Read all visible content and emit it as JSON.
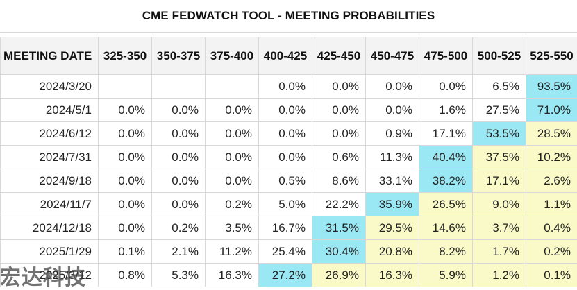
{
  "title": "CME FEDWATCH TOOL - MEETING PROBABILITIES",
  "watermark": "宏达科技",
  "colors": {
    "highest": "#9ae8f4",
    "above_current": "#fafac8",
    "header_bg": "#f3f3f3"
  },
  "table": {
    "headers": [
      "MEETING DATE",
      "325-350",
      "350-375",
      "375-400",
      "400-425",
      "425-450",
      "450-475",
      "475-500",
      "500-525",
      "525-550"
    ],
    "rows": [
      {
        "date": "2024/3/20",
        "cells": [
          {
            "v": "",
            "hl": "empty"
          },
          {
            "v": "",
            "hl": "empty"
          },
          {
            "v": "",
            "hl": "empty"
          },
          {
            "v": "0.0%",
            "hl": ""
          },
          {
            "v": "0.0%",
            "hl": ""
          },
          {
            "v": "0.0%",
            "hl": ""
          },
          {
            "v": "0.0%",
            "hl": ""
          },
          {
            "v": "6.5%",
            "hl": ""
          },
          {
            "v": "93.5%",
            "hl": "blue"
          }
        ]
      },
      {
        "date": "2024/5/1",
        "cells": [
          {
            "v": "0.0%",
            "hl": ""
          },
          {
            "v": "0.0%",
            "hl": ""
          },
          {
            "v": "0.0%",
            "hl": ""
          },
          {
            "v": "0.0%",
            "hl": ""
          },
          {
            "v": "0.0%",
            "hl": ""
          },
          {
            "v": "0.0%",
            "hl": ""
          },
          {
            "v": "1.6%",
            "hl": ""
          },
          {
            "v": "27.5%",
            "hl": ""
          },
          {
            "v": "71.0%",
            "hl": "blue"
          }
        ]
      },
      {
        "date": "2024/6/12",
        "cells": [
          {
            "v": "0.0%",
            "hl": ""
          },
          {
            "v": "0.0%",
            "hl": ""
          },
          {
            "v": "0.0%",
            "hl": ""
          },
          {
            "v": "0.0%",
            "hl": ""
          },
          {
            "v": "0.0%",
            "hl": ""
          },
          {
            "v": "0.9%",
            "hl": ""
          },
          {
            "v": "17.1%",
            "hl": ""
          },
          {
            "v": "53.5%",
            "hl": "blue"
          },
          {
            "v": "28.5%",
            "hl": "yellow"
          }
        ]
      },
      {
        "date": "2024/7/31",
        "cells": [
          {
            "v": "0.0%",
            "hl": ""
          },
          {
            "v": "0.0%",
            "hl": ""
          },
          {
            "v": "0.0%",
            "hl": ""
          },
          {
            "v": "0.0%",
            "hl": ""
          },
          {
            "v": "0.6%",
            "hl": ""
          },
          {
            "v": "11.3%",
            "hl": ""
          },
          {
            "v": "40.4%",
            "hl": "blue"
          },
          {
            "v": "37.5%",
            "hl": "yellow"
          },
          {
            "v": "10.2%",
            "hl": "yellow"
          }
        ]
      },
      {
        "date": "2024/9/18",
        "cells": [
          {
            "v": "0.0%",
            "hl": ""
          },
          {
            "v": "0.0%",
            "hl": ""
          },
          {
            "v": "0.0%",
            "hl": ""
          },
          {
            "v": "0.5%",
            "hl": ""
          },
          {
            "v": "8.6%",
            "hl": ""
          },
          {
            "v": "33.1%",
            "hl": ""
          },
          {
            "v": "38.2%",
            "hl": "blue"
          },
          {
            "v": "17.1%",
            "hl": "yellow"
          },
          {
            "v": "2.6%",
            "hl": "yellow"
          }
        ]
      },
      {
        "date": "2024/11/7",
        "cells": [
          {
            "v": "0.0%",
            "hl": ""
          },
          {
            "v": "0.0%",
            "hl": ""
          },
          {
            "v": "0.2%",
            "hl": ""
          },
          {
            "v": "5.0%",
            "hl": ""
          },
          {
            "v": "22.2%",
            "hl": ""
          },
          {
            "v": "35.9%",
            "hl": "blue"
          },
          {
            "v": "26.5%",
            "hl": "yellow"
          },
          {
            "v": "9.0%",
            "hl": "yellow"
          },
          {
            "v": "1.1%",
            "hl": "yellow"
          }
        ]
      },
      {
        "date": "2024/12/18",
        "cells": [
          {
            "v": "0.0%",
            "hl": ""
          },
          {
            "v": "0.2%",
            "hl": ""
          },
          {
            "v": "3.5%",
            "hl": ""
          },
          {
            "v": "16.7%",
            "hl": ""
          },
          {
            "v": "31.5%",
            "hl": "blue"
          },
          {
            "v": "29.5%",
            "hl": "yellow"
          },
          {
            "v": "14.6%",
            "hl": "yellow"
          },
          {
            "v": "3.7%",
            "hl": "yellow"
          },
          {
            "v": "0.4%",
            "hl": "yellow"
          }
        ]
      },
      {
        "date": "2025/1/29",
        "cells": [
          {
            "v": "0.1%",
            "hl": ""
          },
          {
            "v": "2.1%",
            "hl": ""
          },
          {
            "v": "11.2%",
            "hl": ""
          },
          {
            "v": "25.4%",
            "hl": ""
          },
          {
            "v": "30.4%",
            "hl": "blue"
          },
          {
            "v": "20.8%",
            "hl": "yellow"
          },
          {
            "v": "8.2%",
            "hl": "yellow"
          },
          {
            "v": "1.7%",
            "hl": "yellow"
          },
          {
            "v": "0.2%",
            "hl": "yellow"
          }
        ]
      },
      {
        "date": "2025/3/12",
        "cells": [
          {
            "v": "0.8%",
            "hl": ""
          },
          {
            "v": "5.3%",
            "hl": ""
          },
          {
            "v": "16.3%",
            "hl": ""
          },
          {
            "v": "27.2%",
            "hl": "blue"
          },
          {
            "v": "26.9%",
            "hl": "yellow"
          },
          {
            "v": "16.3%",
            "hl": "yellow"
          },
          {
            "v": "5.9%",
            "hl": "yellow"
          },
          {
            "v": "1.2%",
            "hl": "yellow"
          },
          {
            "v": "0.1%",
            "hl": "yellow"
          }
        ]
      }
    ]
  }
}
